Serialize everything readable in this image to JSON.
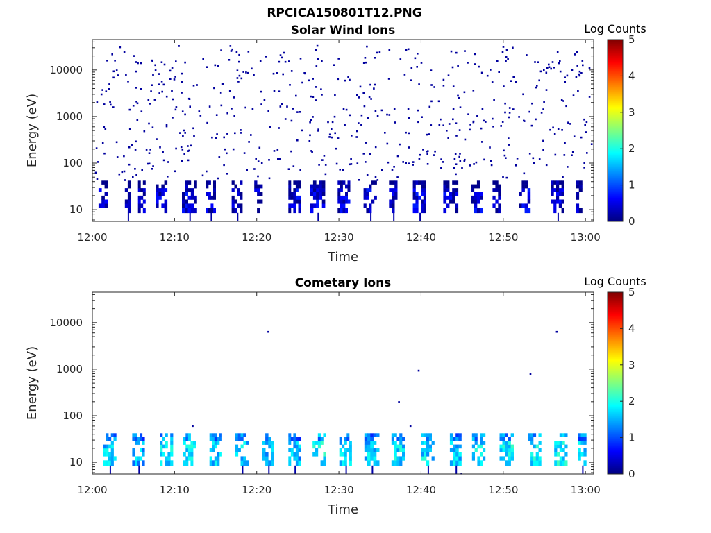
{
  "figure": {
    "title": "RPCICA150801T12.PNG"
  },
  "chart_data": [
    {
      "type": "heatmap",
      "title": "Solar Wind Ions",
      "xlabel": "Time",
      "ylabel": "Energy (eV)",
      "yscale": "log",
      "xlim_minutes": [
        0,
        61
      ],
      "ylim": [
        5.6,
        45000
      ],
      "x_ticks": [
        {
          "minute": 0,
          "label": "12:00"
        },
        {
          "minute": 10,
          "label": "12:10"
        },
        {
          "minute": 20,
          "label": "12:20"
        },
        {
          "minute": 30,
          "label": "12:30"
        },
        {
          "minute": 40,
          "label": "12:40"
        },
        {
          "minute": 50,
          "label": "12:50"
        },
        {
          "minute": 60,
          "label": "13:00"
        }
      ],
      "y_ticks": [
        {
          "value": 10,
          "label": "10"
        },
        {
          "value": 100,
          "label": "100"
        },
        {
          "value": 1000,
          "label": "1000"
        },
        {
          "value": 10000,
          "label": "10000"
        }
      ],
      "colorbar": {
        "title": "Log Counts",
        "min": 0,
        "max": 5,
        "ticks": [
          "0",
          "1",
          "2",
          "3",
          "4",
          "5"
        ]
      },
      "low_band_bursts": [
        {
          "minute": 1.3,
          "width": 1.1,
          "logcount": 0.3
        },
        {
          "minute": 4.3,
          "width": 0.7,
          "logcount": 0.2
        },
        {
          "minute": 6.0,
          "width": 0.9,
          "logcount": 0.3
        },
        {
          "minute": 8.4,
          "width": 1.4,
          "logcount": 0.4
        },
        {
          "minute": 11.8,
          "width": 1.8,
          "logcount": 0.4
        },
        {
          "minute": 14.4,
          "width": 1.2,
          "logcount": 0.3
        },
        {
          "minute": 17.6,
          "width": 1.3,
          "logcount": 0.3
        },
        {
          "minute": 20.2,
          "width": 1.0,
          "logcount": 0.3
        },
        {
          "minute": 24.6,
          "width": 1.5,
          "logcount": 0.4
        },
        {
          "minute": 27.4,
          "width": 1.8,
          "logcount": 0.4
        },
        {
          "minute": 30.6,
          "width": 1.5,
          "logcount": 0.4
        },
        {
          "minute": 33.8,
          "width": 1.6,
          "logcount": 0.4
        },
        {
          "minute": 36.6,
          "width": 1.0,
          "logcount": 0.3
        },
        {
          "minute": 39.8,
          "width": 1.6,
          "logcount": 0.4
        },
        {
          "minute": 43.6,
          "width": 1.8,
          "logcount": 0.4
        },
        {
          "minute": 46.8,
          "width": 1.4,
          "logcount": 0.4
        },
        {
          "minute": 49.2,
          "width": 1.0,
          "logcount": 0.3
        },
        {
          "minute": 52.6,
          "width": 1.4,
          "logcount": 0.4
        },
        {
          "minute": 56.6,
          "width": 1.6,
          "logcount": 0.4
        },
        {
          "minute": 59.2,
          "width": 0.8,
          "logcount": 0.3
        }
      ],
      "scatter_energy_range": [
        100,
        35000
      ],
      "scatter_count": 520
    },
    {
      "type": "heatmap",
      "title": "Cometary Ions",
      "xlabel": "Time",
      "ylabel": "Energy (eV)",
      "yscale": "log",
      "xlim_minutes": [
        0,
        61
      ],
      "ylim": [
        5.6,
        45000
      ],
      "x_ticks": [
        {
          "minute": 0,
          "label": "12:00"
        },
        {
          "minute": 10,
          "label": "12:10"
        },
        {
          "minute": 20,
          "label": "12:20"
        },
        {
          "minute": 30,
          "label": "12:30"
        },
        {
          "minute": 40,
          "label": "12:40"
        },
        {
          "minute": 50,
          "label": "12:50"
        },
        {
          "minute": 60,
          "label": "13:00"
        }
      ],
      "y_ticks": [
        {
          "value": 10,
          "label": "10"
        },
        {
          "value": 100,
          "label": "100"
        },
        {
          "value": 1000,
          "label": "1000"
        },
        {
          "value": 10000,
          "label": "10000"
        }
      ],
      "colorbar": {
        "title": "Log Counts",
        "min": 0,
        "max": 5,
        "ticks": [
          "0",
          "1",
          "2",
          "3",
          "4",
          "5"
        ]
      },
      "low_band_bursts": [
        {
          "minute": 2.1,
          "width": 1.6,
          "logcount": 1.6
        },
        {
          "minute": 5.6,
          "width": 1.5,
          "logcount": 1.5
        },
        {
          "minute": 9.0,
          "width": 1.6,
          "logcount": 1.7
        },
        {
          "minute": 11.8,
          "width": 1.5,
          "logcount": 1.7
        },
        {
          "minute": 15.0,
          "width": 1.5,
          "logcount": 1.6
        },
        {
          "minute": 18.2,
          "width": 1.6,
          "logcount": 1.6
        },
        {
          "minute": 21.4,
          "width": 1.4,
          "logcount": 1.5
        },
        {
          "minute": 24.6,
          "width": 1.5,
          "logcount": 1.5
        },
        {
          "minute": 27.6,
          "width": 1.6,
          "logcount": 1.8
        },
        {
          "minute": 30.8,
          "width": 1.5,
          "logcount": 1.6
        },
        {
          "minute": 34.0,
          "width": 1.8,
          "logcount": 1.6
        },
        {
          "minute": 37.2,
          "width": 1.6,
          "logcount": 1.7
        },
        {
          "minute": 40.8,
          "width": 1.6,
          "logcount": 1.7
        },
        {
          "minute": 44.2,
          "width": 1.4,
          "logcount": 1.6
        },
        {
          "minute": 47.0,
          "width": 1.6,
          "logcount": 1.7
        },
        {
          "minute": 50.4,
          "width": 1.7,
          "logcount": 1.8
        },
        {
          "minute": 53.8,
          "width": 1.6,
          "logcount": 1.8
        },
        {
          "minute": 57.0,
          "width": 1.6,
          "logcount": 1.8
        },
        {
          "minute": 59.6,
          "width": 1.0,
          "logcount": 1.6
        }
      ],
      "isolated_points": [
        {
          "minute": 21.3,
          "energy": 6600
        },
        {
          "minute": 12.1,
          "energy": 63
        },
        {
          "minute": 37.2,
          "energy": 205
        },
        {
          "minute": 38.6,
          "energy": 63
        },
        {
          "minute": 39.6,
          "energy": 970
        },
        {
          "minute": 53.2,
          "energy": 820
        },
        {
          "minute": 56.4,
          "energy": 6600
        },
        {
          "minute": 44.8,
          "energy": 6
        }
      ]
    }
  ]
}
